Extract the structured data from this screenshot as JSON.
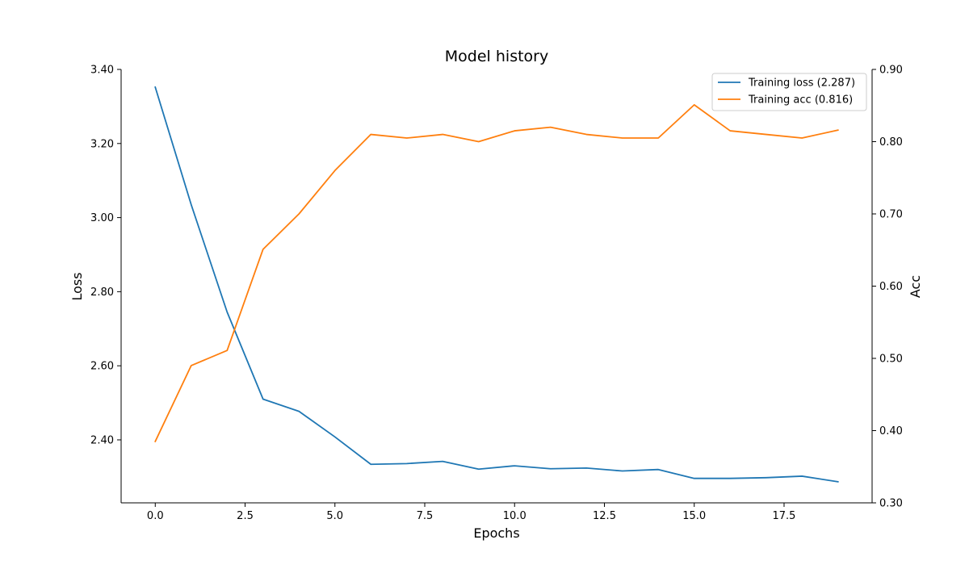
{
  "chart_data": {
    "type": "line",
    "title": "Model history",
    "xlabel": "Epochs",
    "ylabel_left": "Loss",
    "ylabel_right": "Acc",
    "x": [
      0,
      1,
      2,
      3,
      4,
      5,
      6,
      7,
      8,
      9,
      10,
      11,
      12,
      13,
      14,
      15,
      16,
      17,
      18,
      19
    ],
    "xlim": [
      -0.95,
      19.95
    ],
    "xticks": [
      0.0,
      2.5,
      5.0,
      7.5,
      10.0,
      12.5,
      15.0,
      17.5
    ],
    "xtick_labels": [
      "0.0",
      "2.5",
      "5.0",
      "7.5",
      "10.0",
      "12.5",
      "15.0",
      "17.5"
    ],
    "ylim_left": [
      2.23,
      3.4
    ],
    "yticks_left": [
      2.4,
      2.6,
      2.8,
      3.0,
      3.2,
      3.4
    ],
    "ytick_labels_left": [
      "2.40",
      "2.60",
      "2.80",
      "3.00",
      "3.20",
      "3.40"
    ],
    "ylim_right": [
      0.3,
      0.9
    ],
    "yticks_right": [
      0.3,
      0.4,
      0.5,
      0.6,
      0.7,
      0.8,
      0.9
    ],
    "ytick_labels_right": [
      "0.30",
      "0.40",
      "0.50",
      "0.60",
      "0.70",
      "0.80",
      "0.90"
    ],
    "grid": false,
    "legend_position": "top-right",
    "series": [
      {
        "name": "Training loss (2.287)",
        "axis": "left",
        "color": "#1f77b4",
        "values": [
          3.352,
          3.035,
          2.745,
          2.51,
          2.477,
          2.408,
          2.334,
          2.336,
          2.342,
          2.321,
          2.33,
          2.322,
          2.324,
          2.316,
          2.32,
          2.296,
          2.296,
          2.298,
          2.302,
          2.287
        ]
      },
      {
        "name": "Training acc (0.816)",
        "axis": "right",
        "color": "#ff7f0e",
        "values": [
          0.385,
          0.49,
          0.511,
          0.651,
          0.7,
          0.76,
          0.81,
          0.805,
          0.81,
          0.8,
          0.815,
          0.82,
          0.81,
          0.805,
          0.805,
          0.851,
          0.815,
          0.81,
          0.805,
          0.816
        ]
      }
    ]
  }
}
